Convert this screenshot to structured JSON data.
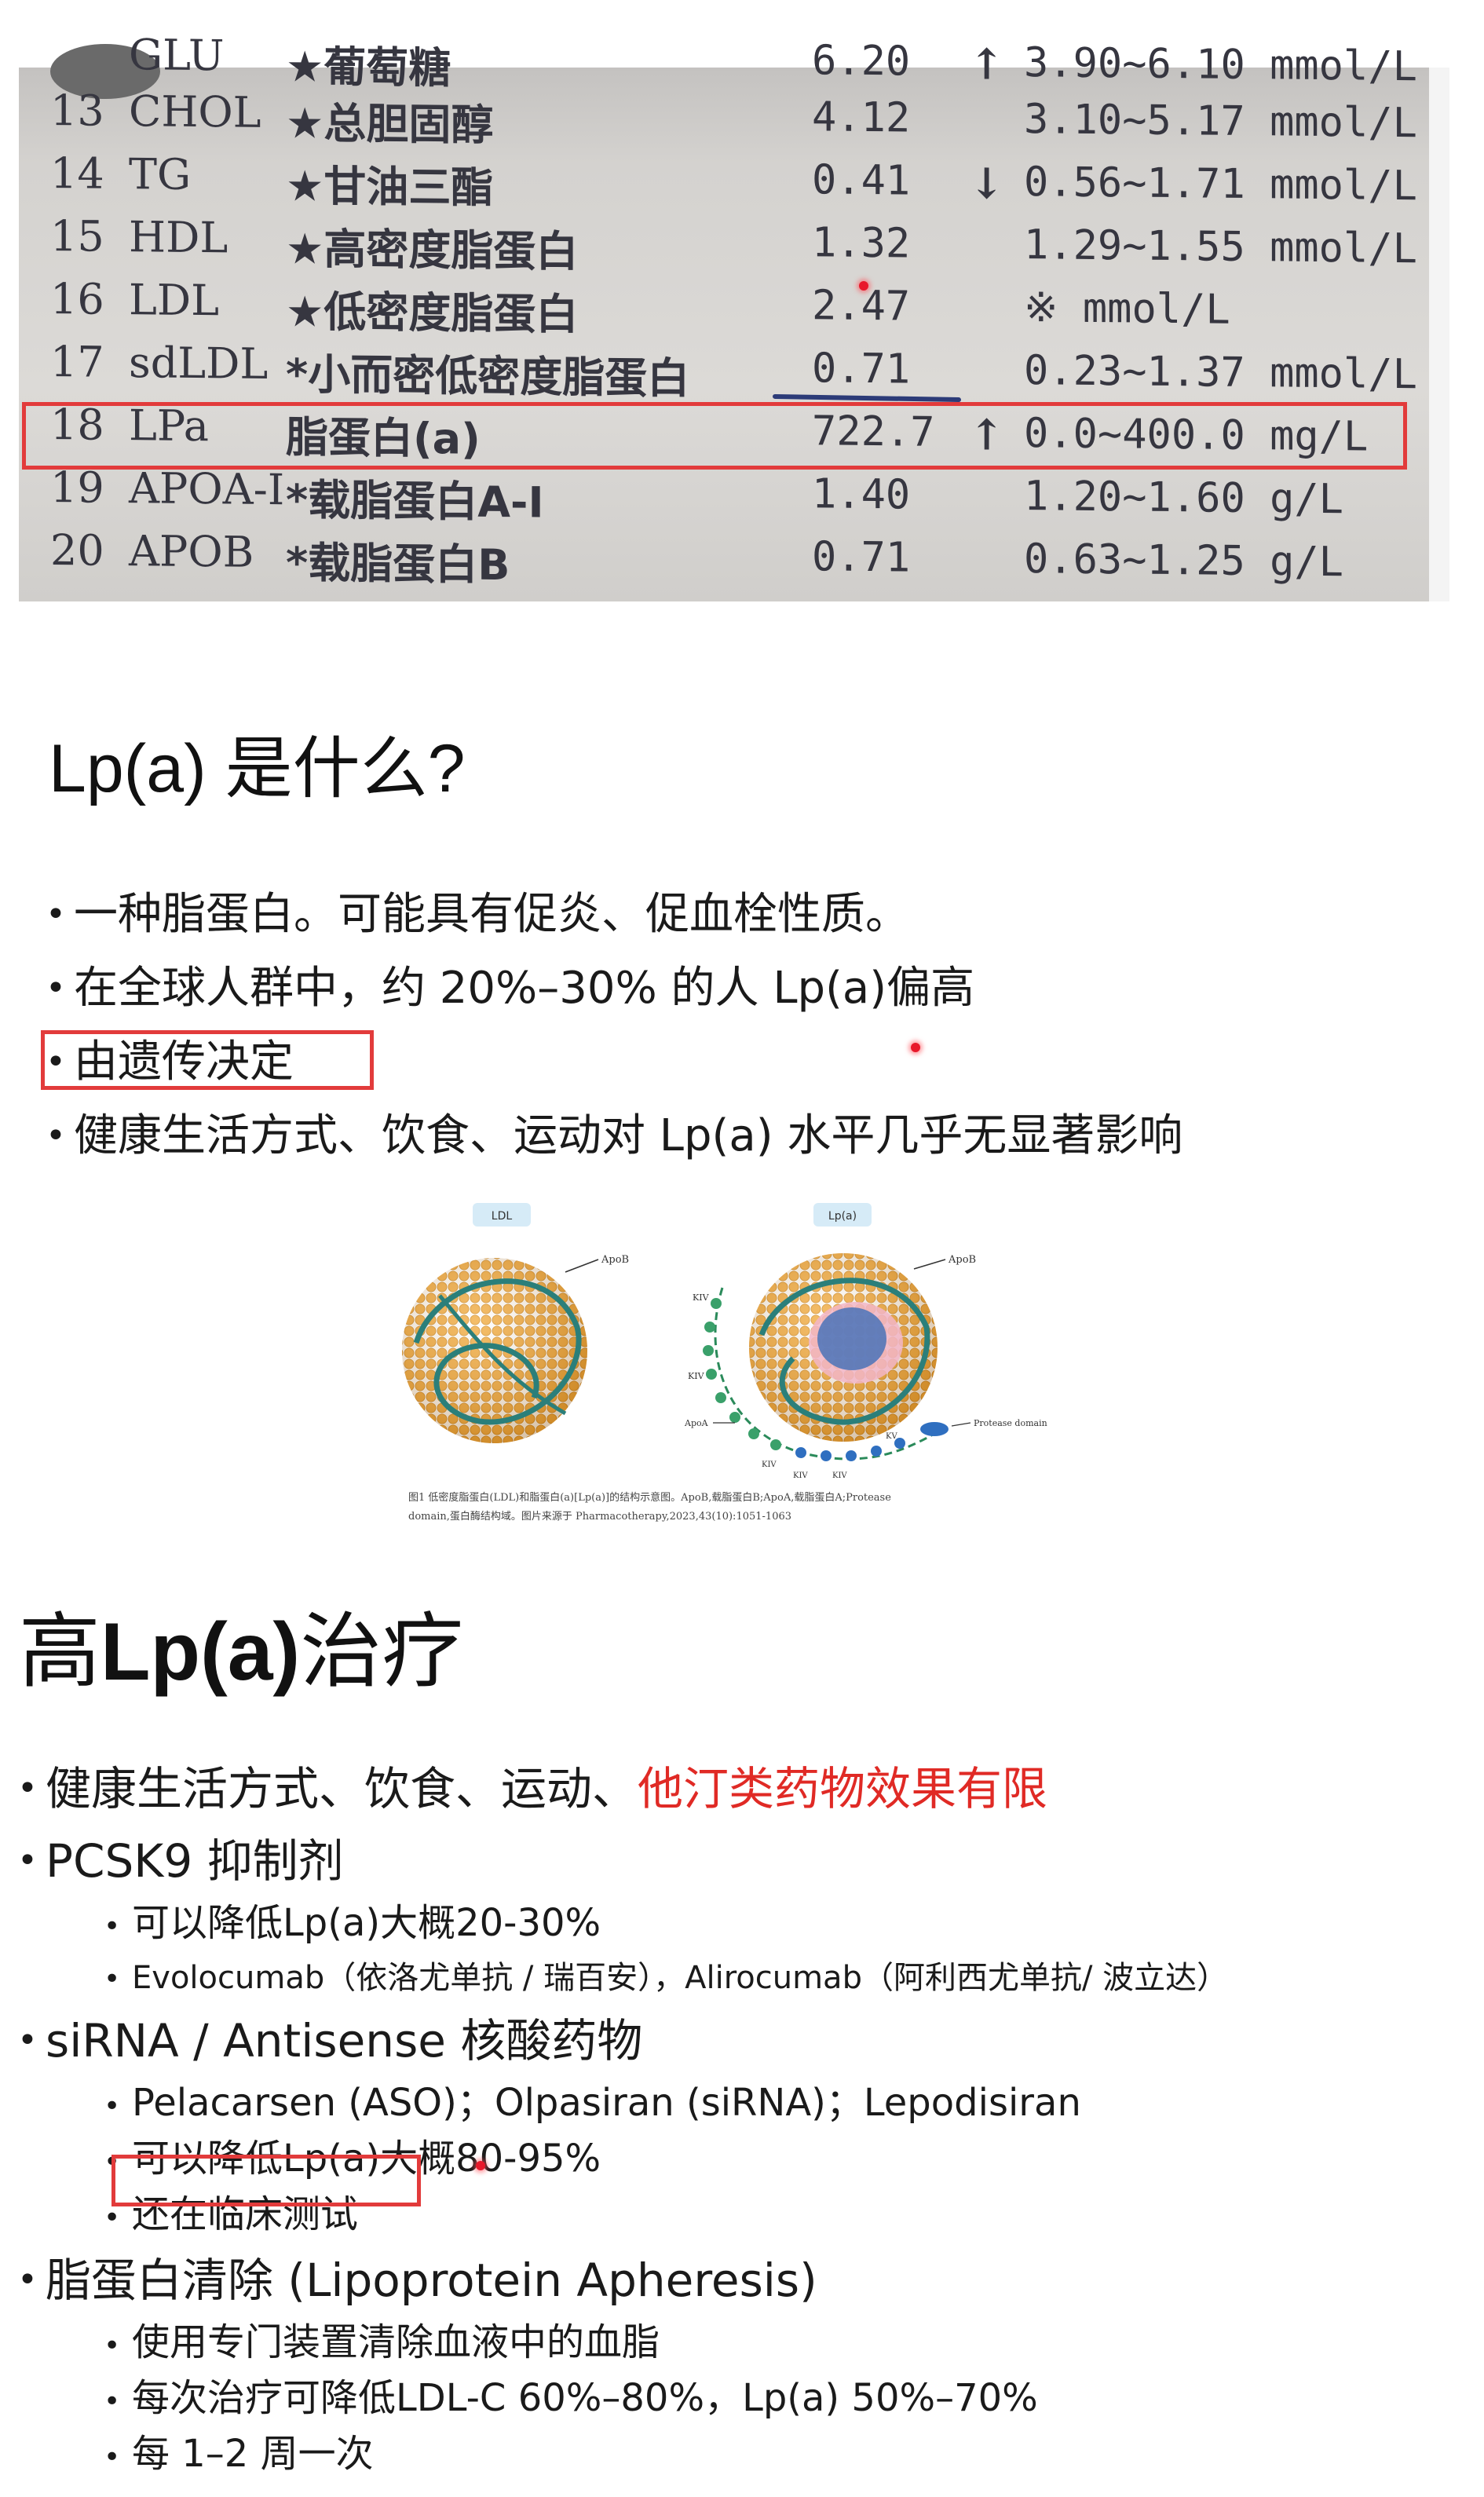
{
  "lab_report": {
    "rows": [
      {
        "id": "",
        "code": "GLU",
        "name": "★葡萄糖",
        "value": "6.20",
        "flag": "↑",
        "ref": "3.90~6.10 mmol/L"
      },
      {
        "id": "13",
        "code": "CHOL",
        "name": "★总胆固醇",
        "value": "4.12",
        "flag": "",
        "ref": "3.10~5.17 mmol/L"
      },
      {
        "id": "14",
        "code": "TG",
        "name": "★甘油三酯",
        "value": "0.41",
        "flag": "↓",
        "ref": "0.56~1.71 mmol/L"
      },
      {
        "id": "15",
        "code": "HDL",
        "name": "★高密度脂蛋白",
        "value": "1.32",
        "flag": "",
        "ref": "1.29~1.55 mmol/L"
      },
      {
        "id": "16",
        "code": "LDL",
        "name": "★低密度脂蛋白",
        "value": "2.47",
        "flag": "",
        "ref": "※ mmol/L"
      },
      {
        "id": "17",
        "code": "sdLDL",
        "name": "*小而密低密度脂蛋白",
        "value": "0.71",
        "flag": "",
        "ref": "0.23~1.37 mmol/L"
      },
      {
        "id": "18",
        "code": "LPa",
        "name": "脂蛋白(a)",
        "value": "722.7",
        "flag": "↑",
        "ref": "0.0~400.0 mg/L"
      },
      {
        "id": "19",
        "code": "APOA-I",
        "name": "*载脂蛋白A-I",
        "value": "1.40",
        "flag": "",
        "ref": "1.20~1.60 g/L"
      },
      {
        "id": "20",
        "code": "APOB",
        "name": "*载脂蛋白B",
        "value": "0.71",
        "flag": "",
        "ref": "0.63~1.25 g/L"
      }
    ]
  },
  "section1": {
    "title": "Lp(a) 是什么?",
    "bullets": [
      "一种脂蛋白。可能具有促炎、促血栓性质。",
      "在全球人群中，约 20%–30% 的人 Lp(a)偏高",
      "由遗传决定",
      "健康生活方式、饮食、运动对 Lp(a) 水平几乎无显著影响"
    ]
  },
  "figure": {
    "left_label": "LDL",
    "right_label": "Lp(a)",
    "apob": "ApoB",
    "apoa": "ApoA",
    "protease": "Protease domain",
    "kiv": "KIV",
    "kv": "KV",
    "caption_line1": "图1  低密度脂蛋白(LDL)和脂蛋白(a)[Lp(a)]的结构示意图。ApoB,载脂蛋白B;ApoA,载脂蛋白A;Protease",
    "caption_line2": "domain,蛋白酶结构域。图片来源于 Pharmacotherapy,2023,43(10):1051-1063"
  },
  "section2": {
    "title_prefix": "高",
    "title_bold": "Lp(a)",
    "title_suffix": "治疗",
    "items": {
      "i1_text": "健康生活方式、饮食、运动、",
      "i1_red": "他汀类药物效果有限",
      "i2": "PCSK9 抑制剂",
      "i2_sub1": "可以降低Lp(a)大概20-30%",
      "i2_sub2": "Evolocumab（依洛尤单抗 / 瑞百安），Alirocumab（阿利西尤单抗/ 波立达）",
      "i3": "siRNA / Antisense 核酸药物",
      "i3_sub1": "Pelacarsen (ASO)；Olpasiran (siRNA)；Lepodisiran",
      "i3_sub2": "可以降低Lp(a)大概80-95%",
      "i3_sub3": "还在临床测试",
      "i4": "脂蛋白清除 (Lipoprotein Apheresis)",
      "i4_sub1": "使用专门装置清除血液中的血脂",
      "i4_sub2": "每次治疗可降低LDL-C 60%–80%，Lp(a) 50%–70%",
      "i4_sub3": "每 1–2 周一次"
    }
  },
  "colors": {
    "highlight_box": "#e23b3b",
    "red_text": "#e02a25",
    "laser_dot": "#e8182a",
    "pen_ink": "#2c3b78"
  }
}
